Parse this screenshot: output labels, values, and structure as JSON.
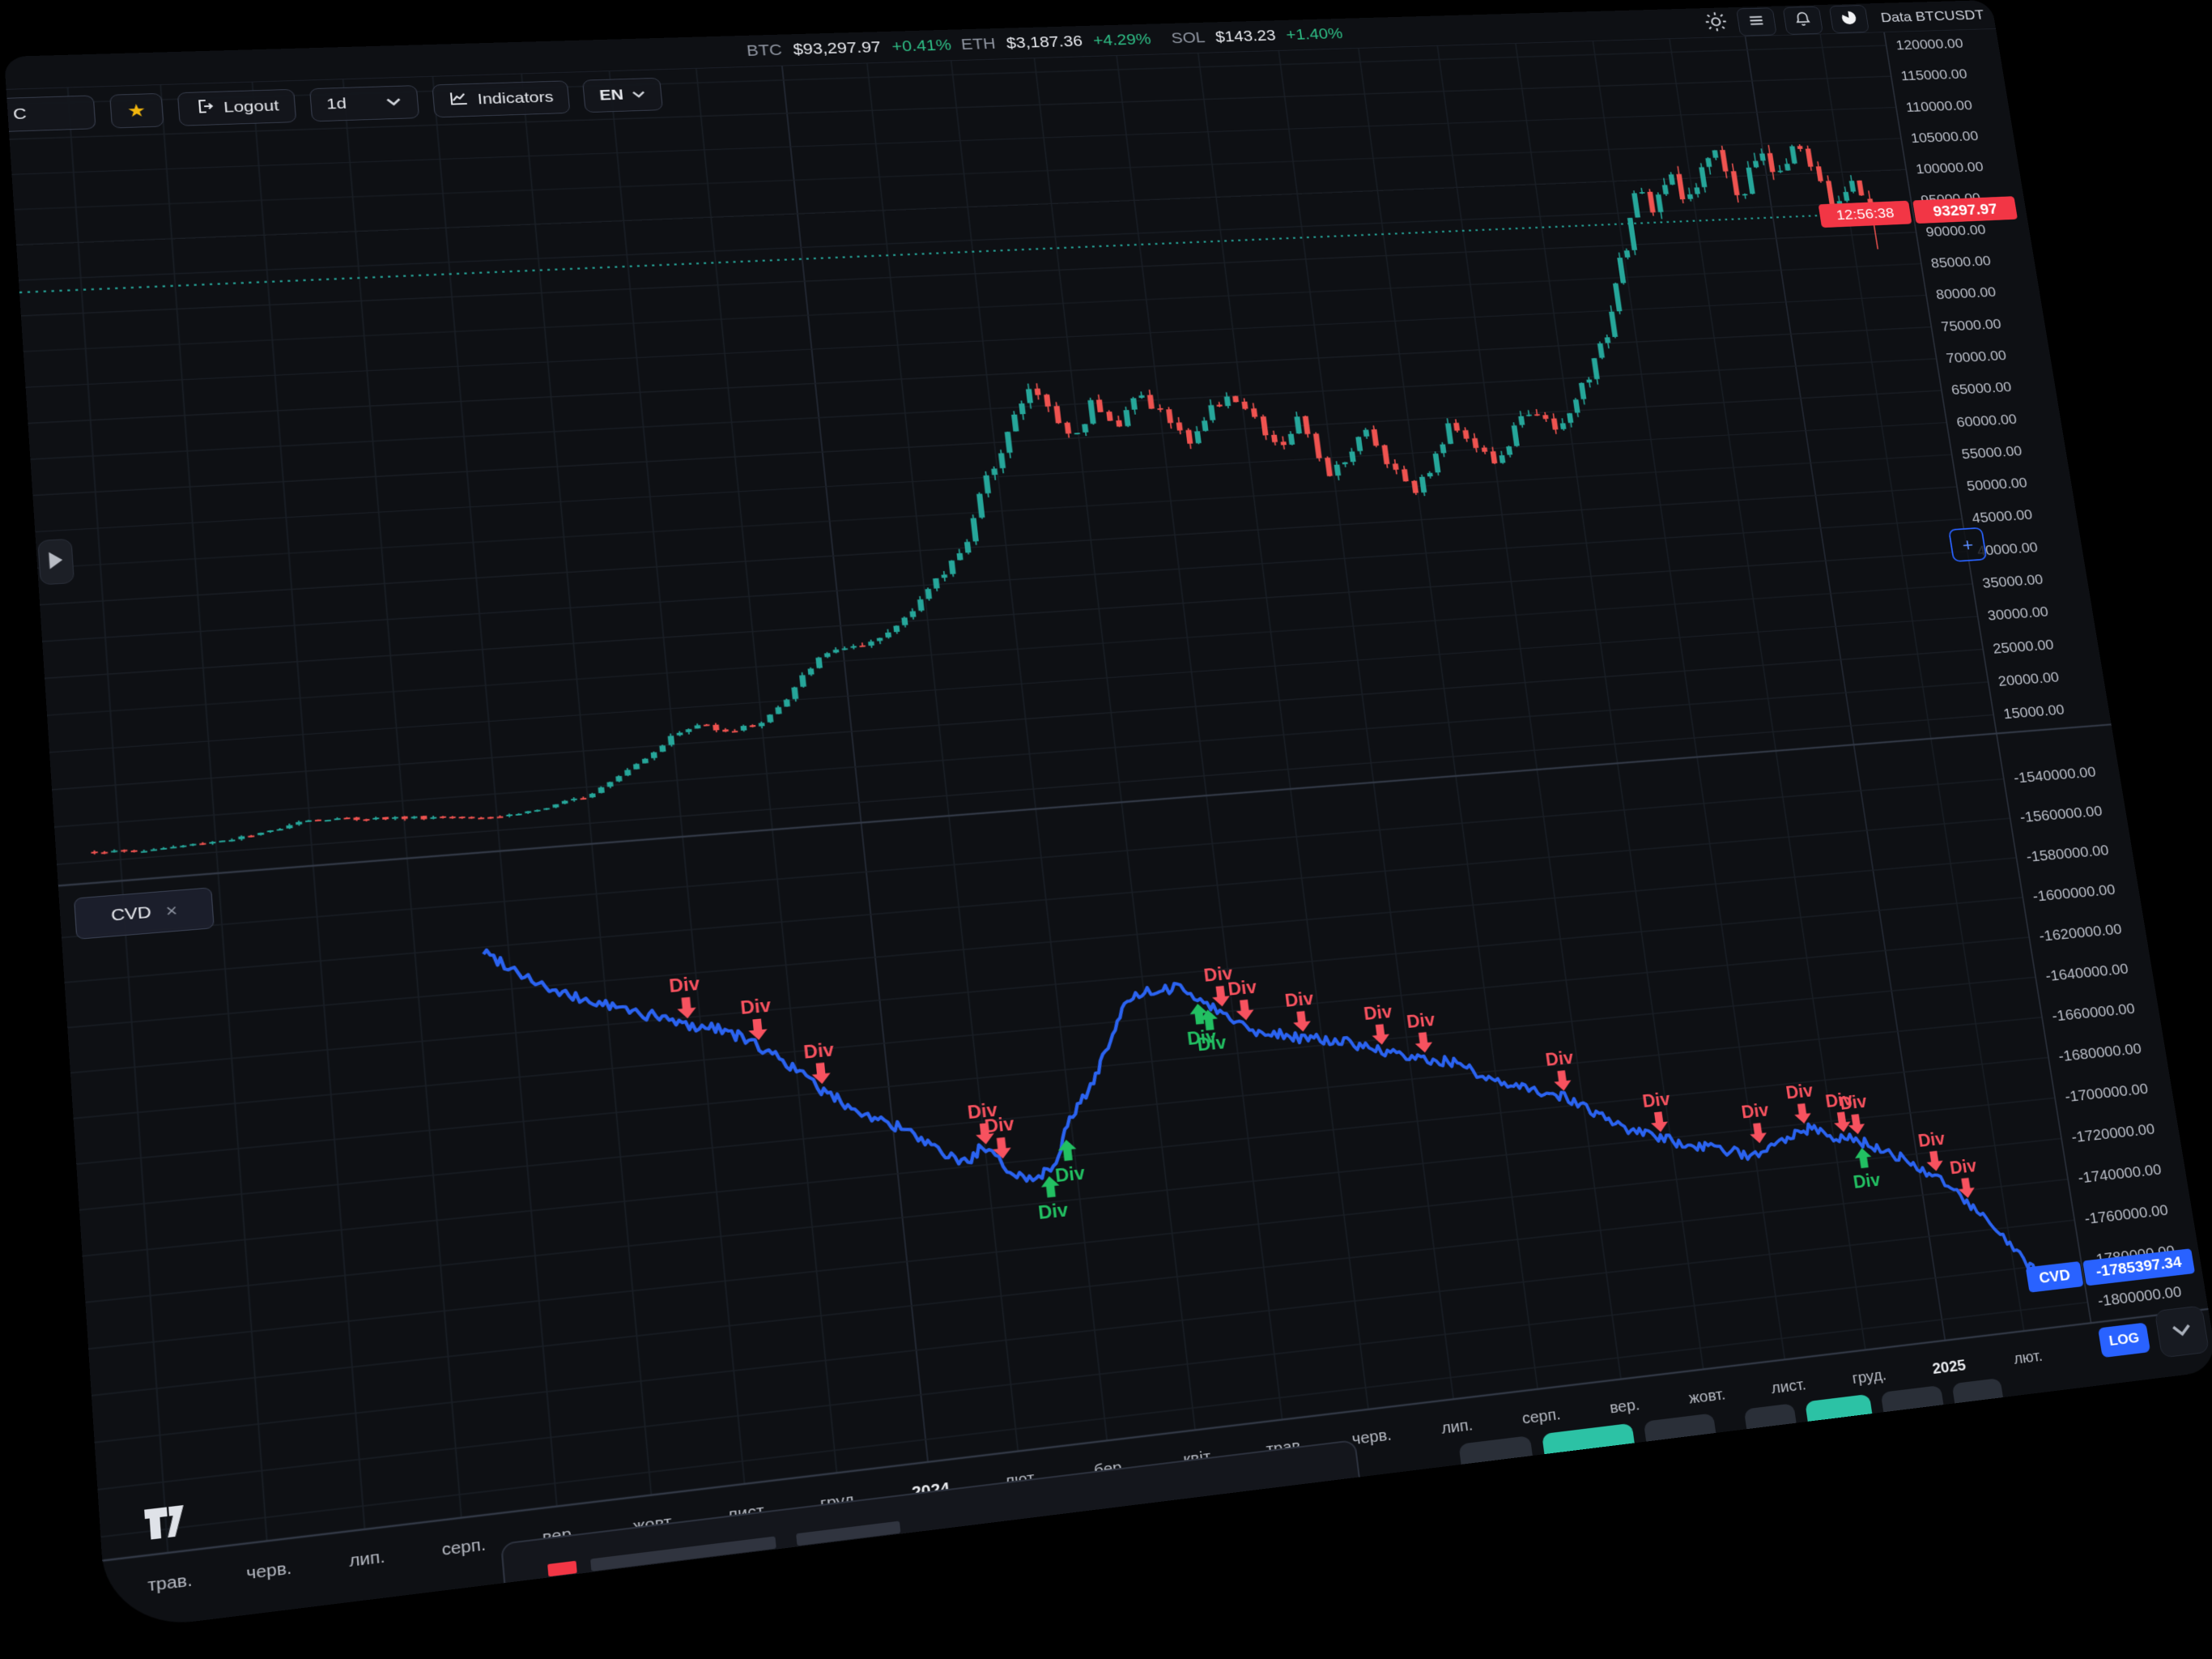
{
  "window": {
    "data_source_label": "Data BTCUSDT"
  },
  "ticker_bar": {
    "tickers": [
      {
        "symbol": "BTC",
        "price": "$93,297.97",
        "change": "+0.41%"
      },
      {
        "symbol": "ETH",
        "price": "$3,187.36",
        "change": "+4.29%"
      },
      {
        "symbol": "SOL",
        "price": "$143.23",
        "change": "+1.40%"
      }
    ],
    "icons": [
      "sun-icon",
      "menu-icon",
      "bell-icon",
      "pie-icon"
    ]
  },
  "toolbar": {
    "search_fragment": "C",
    "favorite_icon": "★",
    "logout_label": "Logout",
    "timeframe_value": "1d",
    "indicators_label": "Indicators",
    "language_value": "EN"
  },
  "price_scale": {
    "ticks": [
      "120000.00",
      "115000.00",
      "110000.00",
      "105000.00",
      "100000.00",
      "95000.00",
      "90000.00",
      "85000.00",
      "80000.00",
      "75000.00",
      "70000.00",
      "65000.00",
      "60000.00",
      "55000.00",
      "50000.00",
      "45000.00",
      "40000.00",
      "35000.00",
      "30000.00",
      "25000.00",
      "20000.00",
      "15000.00"
    ],
    "countdown": "12:56:38",
    "last_price_label": "93297.97"
  },
  "cvd_scale": {
    "ticks": [
      "-1540000.00",
      "-1560000.00",
      "-1580000.00",
      "-1600000.00",
      "-1620000.00",
      "-1640000.00",
      "-1660000.00",
      "-1680000.00",
      "-1700000.00",
      "-1720000.00",
      "-1740000.00",
      "-1760000.00",
      "-1780000.00",
      "-1800000.00"
    ],
    "value_label": "-1785397.34"
  },
  "indicator_pane": {
    "label": "CVD",
    "close_icon": "×"
  },
  "scale_controls": {
    "log_label": "LOG",
    "collapse_icon": "⌄"
  },
  "time_axis": {
    "labels": [
      {
        "text": "трав.",
        "year": false
      },
      {
        "text": "черв.",
        "year": false
      },
      {
        "text": "лип.",
        "year": false
      },
      {
        "text": "серп.",
        "year": false
      },
      {
        "text": "вер.",
        "year": false
      },
      {
        "text": "жовт.",
        "year": false
      },
      {
        "text": "лист.",
        "year": false
      },
      {
        "text": "груд.",
        "year": false
      },
      {
        "text": "2024",
        "year": true
      },
      {
        "text": "лют.",
        "year": false
      },
      {
        "text": "бер.",
        "year": false
      },
      {
        "text": "квіт.",
        "year": false
      },
      {
        "text": "трав.",
        "year": false
      },
      {
        "text": "черв.",
        "year": false
      },
      {
        "text": "лип.",
        "year": false
      },
      {
        "text": "серп.",
        "year": false
      },
      {
        "text": "вер.",
        "year": false
      },
      {
        "text": "жовт.",
        "year": false
      },
      {
        "text": "лист.",
        "year": false
      },
      {
        "text": "груд.",
        "year": false
      },
      {
        "text": "2025",
        "year": true
      },
      {
        "text": "лют.",
        "year": false
      }
    ]
  },
  "colors": {
    "panel_bg": "#0e1014",
    "grid": "#1a1e25",
    "axis_text": "#b9bdc7",
    "candle_up": "#26a69a",
    "candle_down": "#ef5350",
    "price_label_bg": "#f23645",
    "accent_blue": "#2962ff",
    "cvd_line": "#2b63f0",
    "ticker_change": "#2ebd85",
    "div_bear": "#f7525f",
    "div_bull": "#22c062",
    "dotted_price_line": "#26a69a",
    "teal_button": "#2cc2a5",
    "grey_button": "#2a2f38",
    "star_gold": "#f2b60e"
  },
  "chart_data": {
    "type": "candlestick+line",
    "symbol": "BTCUSDT",
    "timeframe": "1d",
    "price_axis": {
      "min": 15000,
      "max": 120000,
      "step": 5000,
      "scale": "linear"
    },
    "last_price": 93297.97,
    "last_candle": {
      "open": 95600,
      "high": 96900,
      "low": 87600,
      "close": 93297.97
    },
    "price_anchors": [
      [
        0.0,
        16300
      ],
      [
        0.02,
        15900
      ],
      [
        0.05,
        16300
      ],
      [
        0.08,
        16900
      ],
      [
        0.1,
        18400
      ],
      [
        0.125,
        18100
      ],
      [
        0.15,
        17700
      ],
      [
        0.175,
        17300
      ],
      [
        0.2,
        16900
      ],
      [
        0.225,
        17600
      ],
      [
        0.245,
        19000
      ],
      [
        0.26,
        21300
      ],
      [
        0.275,
        23500
      ],
      [
        0.29,
        26200
      ],
      [
        0.305,
        27500
      ],
      [
        0.32,
        26300
      ],
      [
        0.335,
        27000
      ],
      [
        0.35,
        29800
      ],
      [
        0.365,
        34600
      ],
      [
        0.38,
        37000
      ],
      [
        0.395,
        36500
      ],
      [
        0.41,
        38900
      ],
      [
        0.425,
        42800
      ],
      [
        0.44,
        46300
      ],
      [
        0.455,
        51300
      ],
      [
        0.465,
        57500
      ],
      [
        0.475,
        62500
      ],
      [
        0.487,
        68200
      ],
      [
        0.5,
        73100
      ],
      [
        0.51,
        68000
      ],
      [
        0.52,
        64800
      ],
      [
        0.532,
        70600
      ],
      [
        0.545,
        66500
      ],
      [
        0.557,
        71200
      ],
      [
        0.57,
        67800
      ],
      [
        0.582,
        63400
      ],
      [
        0.595,
        67500
      ],
      [
        0.607,
        70600
      ],
      [
        0.62,
        66300
      ],
      [
        0.632,
        61500
      ],
      [
        0.645,
        65800
      ],
      [
        0.658,
        57800
      ],
      [
        0.67,
        60200
      ],
      [
        0.682,
        63800
      ],
      [
        0.694,
        58300
      ],
      [
        0.707,
        54500
      ],
      [
        0.72,
        59100
      ],
      [
        0.732,
        64500
      ],
      [
        0.744,
        60700
      ],
      [
        0.756,
        57300
      ],
      [
        0.768,
        62800
      ],
      [
        0.78,
        66000
      ],
      [
        0.792,
        61600
      ],
      [
        0.8,
        64000
      ],
      [
        0.81,
        68700
      ],
      [
        0.822,
        72800
      ],
      [
        0.832,
        78000
      ],
      [
        0.84,
        86500
      ],
      [
        0.85,
        91000
      ],
      [
        0.858,
        98300
      ],
      [
        0.868,
        95000
      ],
      [
        0.878,
        101200
      ],
      [
        0.888,
        96800
      ],
      [
        0.898,
        99500
      ],
      [
        0.908,
        106200
      ],
      [
        0.915,
        101500
      ],
      [
        0.922,
        95200
      ],
      [
        0.93,
        100800
      ],
      [
        0.938,
        104500
      ],
      [
        0.946,
        98900
      ],
      [
        0.954,
        102300
      ],
      [
        0.962,
        104800
      ],
      [
        0.97,
        99000
      ],
      [
        0.978,
        94500
      ],
      [
        0.986,
        96800
      ],
      [
        0.993,
        98100
      ],
      [
        1.0,
        93297.97
      ]
    ],
    "cvd_axis": {
      "min": -1800000,
      "max": -1540000,
      "step": 20000
    },
    "cvd_last": -1785397.34,
    "cvd_anchors": [
      [
        0.185,
        -1562000
      ],
      [
        0.22,
        -1584000
      ],
      [
        0.25,
        -1593000
      ],
      [
        0.27,
        -1599000
      ],
      [
        0.285,
        -1604000
      ],
      [
        0.3,
        -1606000
      ],
      [
        0.315,
        -1614000
      ],
      [
        0.33,
        -1623000
      ],
      [
        0.35,
        -1640000
      ],
      [
        0.37,
        -1652000
      ],
      [
        0.39,
        -1661000
      ],
      [
        0.405,
        -1672000
      ],
      [
        0.418,
        -1678000
      ],
      [
        0.428,
        -1672000
      ],
      [
        0.44,
        -1683000
      ],
      [
        0.452,
        -1689000
      ],
      [
        0.463,
        -1684000
      ],
      [
        0.475,
        -1664000
      ],
      [
        0.487,
        -1650000
      ],
      [
        0.5,
        -1630000
      ],
      [
        0.512,
        -1612000
      ],
      [
        0.522,
        -1607000
      ],
      [
        0.53,
        -1610000
      ],
      [
        0.538,
        -1605000
      ],
      [
        0.552,
        -1613000
      ],
      [
        0.565,
        -1622000
      ],
      [
        0.578,
        -1630000
      ],
      [
        0.59,
        -1632000
      ],
      [
        0.605,
        -1636000
      ],
      [
        0.617,
        -1638000
      ],
      [
        0.63,
        -1640000
      ],
      [
        0.645,
        -1645000
      ],
      [
        0.66,
        -1650000
      ],
      [
        0.675,
        -1652000
      ],
      [
        0.69,
        -1655000
      ],
      [
        0.698,
        -1662000
      ],
      [
        0.71,
        -1667000
      ],
      [
        0.725,
        -1670000
      ],
      [
        0.74,
        -1674000
      ],
      [
        0.753,
        -1680000
      ],
      [
        0.768,
        -1690000
      ],
      [
        0.78,
        -1695000
      ],
      [
        0.795,
        -1700000
      ],
      [
        0.81,
        -1704000
      ],
      [
        0.822,
        -1707000
      ],
      [
        0.835,
        -1710000
      ],
      [
        0.845,
        -1713000
      ],
      [
        0.852,
        -1709000
      ],
      [
        0.862,
        -1706000
      ],
      [
        0.872,
        -1704000
      ],
      [
        0.882,
        -1702000
      ],
      [
        0.893,
        -1708000
      ],
      [
        0.905,
        -1710000
      ],
      [
        0.92,
        -1716000
      ],
      [
        0.935,
        -1724000
      ],
      [
        0.95,
        -1733000
      ],
      [
        0.963,
        -1745000
      ],
      [
        0.975,
        -1757000
      ],
      [
        0.988,
        -1772000
      ],
      [
        1.0,
        -1785397.34
      ]
    ],
    "divergences": [
      {
        "t": 0.284,
        "kind": "bearish"
      },
      {
        "t": 0.319,
        "kind": "bearish"
      },
      {
        "t": 0.349,
        "kind": "bearish"
      },
      {
        "t": 0.43,
        "kind": "bearish"
      },
      {
        "t": 0.438,
        "kind": "bearish"
      },
      {
        "t": 0.461,
        "kind": "bullish"
      },
      {
        "t": 0.472,
        "kind": "bullish"
      },
      {
        "t": 0.55,
        "kind": "bullish"
      },
      {
        "t": 0.555,
        "kind": "bullish"
      },
      {
        "t": 0.563,
        "kind": "bearish"
      },
      {
        "t": 0.575,
        "kind": "bearish"
      },
      {
        "t": 0.605,
        "kind": "bearish"
      },
      {
        "t": 0.647,
        "kind": "bearish"
      },
      {
        "t": 0.67,
        "kind": "bearish"
      },
      {
        "t": 0.744,
        "kind": "bearish"
      },
      {
        "t": 0.795,
        "kind": "bearish"
      },
      {
        "t": 0.85,
        "kind": "bearish"
      },
      {
        "t": 0.877,
        "kind": "bearish"
      },
      {
        "t": 0.899,
        "kind": "bearish"
      },
      {
        "t": 0.907,
        "kind": "bearish"
      },
      {
        "t": 0.908,
        "kind": "bullish"
      },
      {
        "t": 0.949,
        "kind": "bearish"
      },
      {
        "t": 0.965,
        "kind": "bearish"
      }
    ],
    "div_label": "Div"
  }
}
